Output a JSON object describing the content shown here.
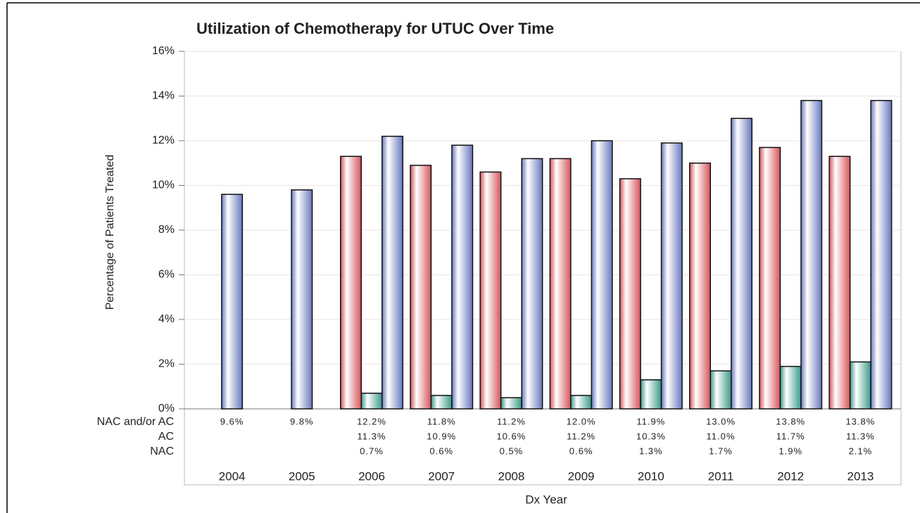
{
  "chart_data": {
    "type": "bar",
    "title": "Utilization of Chemotherapy for UTUC Over Time",
    "y_label": "Percentage of Patients Treated",
    "x_label": "Dx Year",
    "categories": [
      "2004",
      "2005",
      "2006",
      "2007",
      "2008",
      "2009",
      "2010",
      "2011",
      "2012",
      "2013"
    ],
    "series": [
      {
        "name": "NAC and/or AC",
        "color": "#6877bd",
        "values": [
          9.6,
          9.8,
          12.2,
          11.8,
          11.2,
          12.0,
          11.9,
          13.0,
          13.8,
          13.8
        ],
        "value_labels": [
          "9.6%",
          "9.8%",
          "12.2%",
          "11.8%",
          "11.2%",
          "12.0%",
          "11.9%",
          "13.0%",
          "13.8%",
          "13.8%"
        ]
      },
      {
        "name": "AC",
        "color": "#d4545a",
        "values": [
          null,
          null,
          11.3,
          10.9,
          10.6,
          11.2,
          10.3,
          11.0,
          11.7,
          11.3
        ],
        "value_labels": [
          null,
          null,
          "11.3%",
          "10.9%",
          "10.6%",
          "11.2%",
          "10.3%",
          "11.0%",
          "11.7%",
          "11.3%"
        ]
      },
      {
        "name": "NAC",
        "color": "#3a9a88",
        "values": [
          null,
          null,
          0.7,
          0.6,
          0.5,
          0.6,
          1.3,
          1.7,
          1.9,
          2.1
        ],
        "value_labels": [
          null,
          null,
          "0.7%",
          "0.6%",
          "0.5%",
          "0.6%",
          "1.3%",
          "1.7%",
          "1.9%",
          "2.1%"
        ]
      }
    ],
    "ylim": [
      0,
      16
    ],
    "yticks": [
      {
        "value": 0,
        "label": "0%"
      },
      {
        "value": 2,
        "label": "2%"
      },
      {
        "value": 4,
        "label": "4%"
      },
      {
        "value": 6,
        "label": "6%"
      },
      {
        "value": 8,
        "label": "8%"
      },
      {
        "value": 10,
        "label": "10%"
      },
      {
        "value": 12,
        "label": "12%"
      },
      {
        "value": 14,
        "label": "14%"
      },
      {
        "value": 16,
        "label": "16%"
      }
    ],
    "grid": true
  }
}
